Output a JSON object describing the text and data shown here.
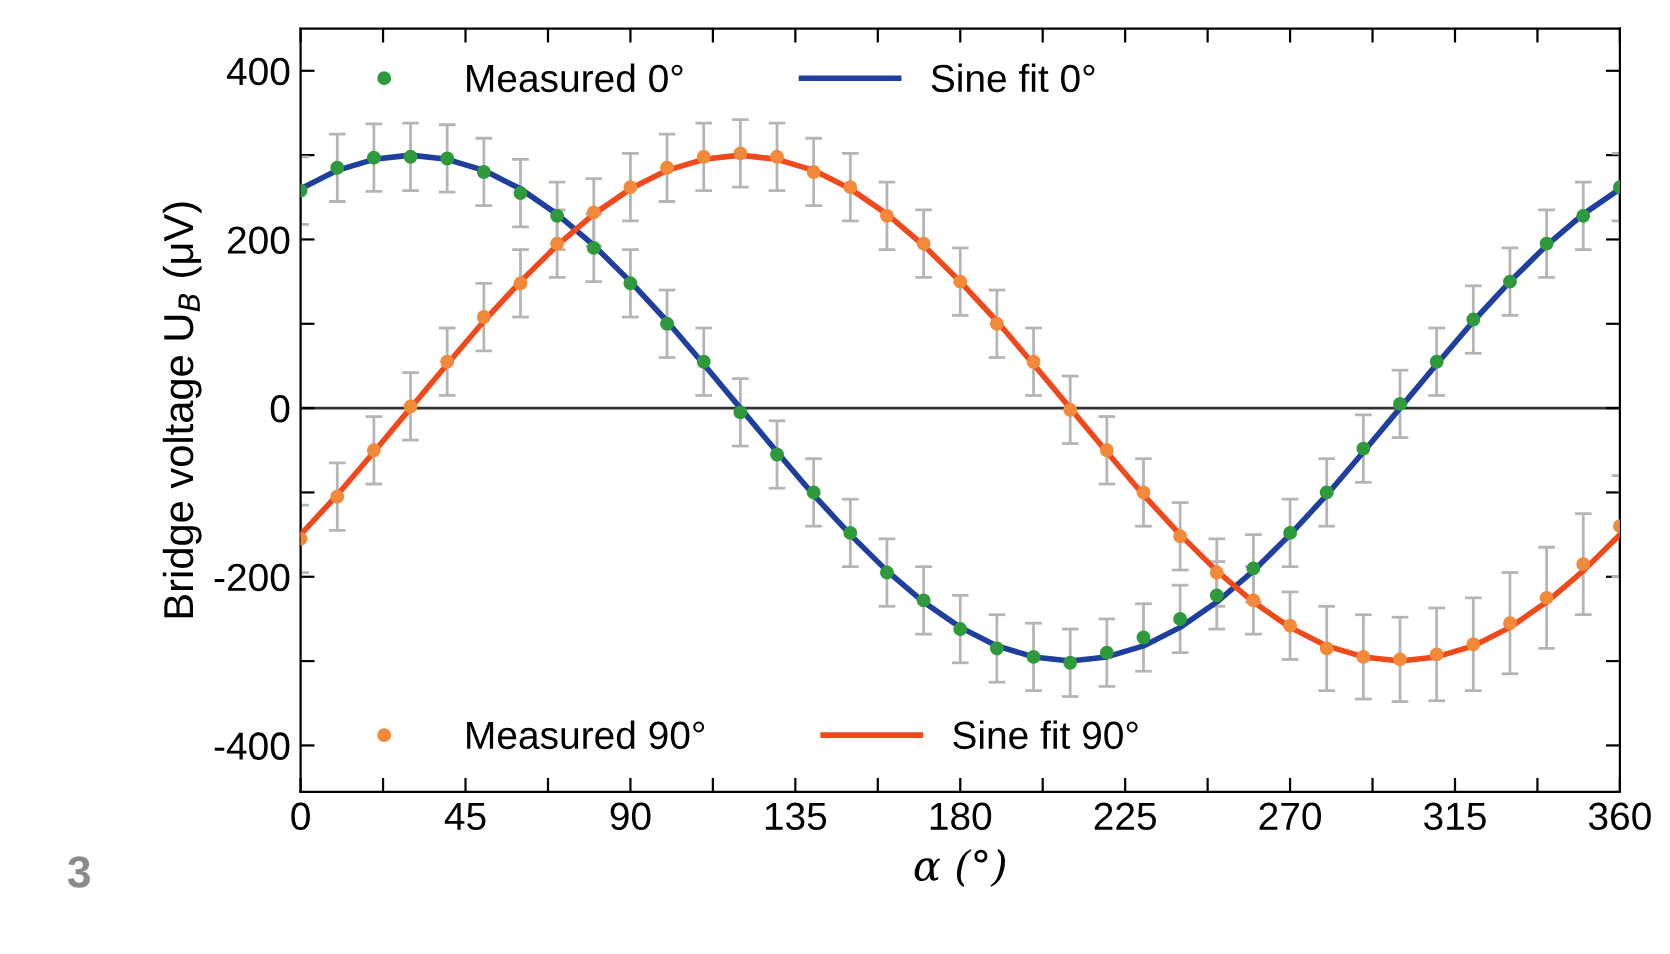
{
  "chart_data": {
    "type": "scatter",
    "xlabel": "α (°)",
    "ylabel": "Bridge voltage U$_{B}$ (μV)",
    "xlim": [
      0,
      360
    ],
    "ylim": [
      -455,
      450
    ],
    "xticks": [
      0,
      {
        "value": 22.5,
        "label": null
      },
      45,
      {
        "value": 67.5,
        "label": null
      },
      90,
      {
        "value": 112.5,
        "label": null
      },
      135,
      {
        "value": 157.5,
        "label": null
      },
      180,
      {
        "value": 202.5,
        "label": null
      },
      225,
      {
        "value": 247.5,
        "label": null
      },
      270,
      {
        "value": 292.5,
        "label": null
      },
      315,
      {
        "value": 337.5,
        "label": null
      },
      360
    ],
    "yticks": [
      -400,
      {
        "value": -300,
        "label": null
      },
      -200,
      {
        "value": -100,
        "label": null
      },
      0,
      {
        "value": 100,
        "label": null
      },
      200,
      {
        "value": 300,
        "label": null
      },
      400
    ],
    "grid": false,
    "legend": "top",
    "marker": "circle",
    "ref_lines": [
      {
        "axis": "y",
        "value": 0,
        "color": "#333333",
        "line_style": "solid"
      }
    ],
    "annotations": [
      "3"
    ],
    "series": [
      {
        "name": "Measured 0°",
        "color": "#2e9a3c",
        "x": [
          0,
          10,
          20,
          30,
          40,
          50,
          60,
          70,
          80,
          90,
          100,
          110,
          120,
          130,
          140,
          150,
          160,
          170,
          180,
          190,
          200,
          210,
          220,
          230,
          240,
          250,
          260,
          270,
          280,
          290,
          300,
          310,
          320,
          330,
          340,
          350,
          360
        ],
        "values": [
          258,
          285,
          297,
          298,
          296,
          280,
          255,
          228,
          190,
          148,
          100,
          55,
          -5,
          -55,
          -100,
          -148,
          -195,
          -228,
          -262,
          -285,
          -295,
          -302,
          -290,
          -272,
          -250,
          -222,
          -190,
          -148,
          -100,
          -48,
          5,
          55,
          105,
          150,
          195,
          228,
          262
        ],
        "errors": [
          40,
          40,
          40,
          40,
          40,
          40,
          40,
          40,
          40,
          40,
          40,
          40,
          40,
          40,
          40,
          40,
          40,
          40,
          40,
          40,
          40,
          40,
          40,
          40,
          40,
          40,
          40,
          40,
          40,
          40,
          40,
          40,
          40,
          40,
          40,
          40,
          40
        ]
      },
      {
        "name": "Sine fit 0°",
        "type": "line",
        "color": "#1f3f9f",
        "marker": "none",
        "x": [
          0,
          10,
          20,
          30,
          40,
          50,
          60,
          70,
          80,
          90,
          100,
          110,
          120,
          130,
          140,
          150,
          160,
          170,
          180,
          190,
          200,
          210,
          220,
          230,
          240,
          250,
          260,
          270,
          280,
          290,
          300,
          310,
          320,
          330,
          340,
          350,
          360
        ],
        "values": [
          260,
          282,
          295,
          300,
          295,
          282,
          260,
          230,
          193,
          150,
          103,
          52,
          0,
          -52,
          -103,
          -150,
          -193,
          -230,
          -260,
          -282,
          -295,
          -300,
          -295,
          -282,
          -260,
          -230,
          -193,
          -150,
          -103,
          -52,
          0,
          52,
          103,
          150,
          193,
          230,
          260
        ]
      },
      {
        "name": "Measured 90°",
        "color": "#f28a3a",
        "x": [
          0,
          10,
          20,
          30,
          40,
          50,
          60,
          70,
          80,
          90,
          100,
          110,
          120,
          130,
          140,
          150,
          160,
          170,
          180,
          190,
          200,
          210,
          220,
          230,
          240,
          250,
          260,
          270,
          280,
          290,
          300,
          310,
          320,
          330,
          340,
          350,
          360
        ],
        "values": [
          -155,
          -105,
          -50,
          2,
          55,
          108,
          148,
          195,
          232,
          262,
          285,
          298,
          302,
          298,
          280,
          262,
          228,
          195,
          150,
          100,
          55,
          -2,
          -50,
          -100,
          -152,
          -195,
          -228,
          -258,
          -285,
          -295,
          -298,
          -292,
          -280,
          -255,
          -225,
          -185,
          -140
        ],
        "errors": [
          40,
          40,
          40,
          40,
          40,
          40,
          40,
          40,
          40,
          40,
          40,
          40,
          40,
          40,
          40,
          40,
          40,
          40,
          40,
          40,
          40,
          40,
          40,
          40,
          40,
          40,
          40,
          40,
          50,
          50,
          50,
          55,
          55,
          60,
          60,
          60,
          60
        ]
      },
      {
        "name": "Sine fit 90°",
        "type": "line",
        "color": "#f04a1c",
        "marker": "none",
        "x": [
          0,
          10,
          20,
          30,
          40,
          50,
          60,
          70,
          80,
          90,
          100,
          110,
          120,
          130,
          140,
          150,
          160,
          170,
          180,
          190,
          200,
          210,
          220,
          230,
          240,
          250,
          260,
          270,
          280,
          290,
          300,
          310,
          320,
          330,
          340,
          350,
          360
        ],
        "values": [
          -150,
          -103,
          -52,
          0,
          52,
          103,
          150,
          193,
          230,
          260,
          282,
          295,
          300,
          295,
          282,
          260,
          230,
          193,
          150,
          103,
          52,
          0,
          -52,
          -103,
          -150,
          -193,
          -230,
          -260,
          -282,
          -295,
          -300,
          -295,
          -282,
          -260,
          -230,
          -193,
          -150
        ]
      }
    ]
  }
}
